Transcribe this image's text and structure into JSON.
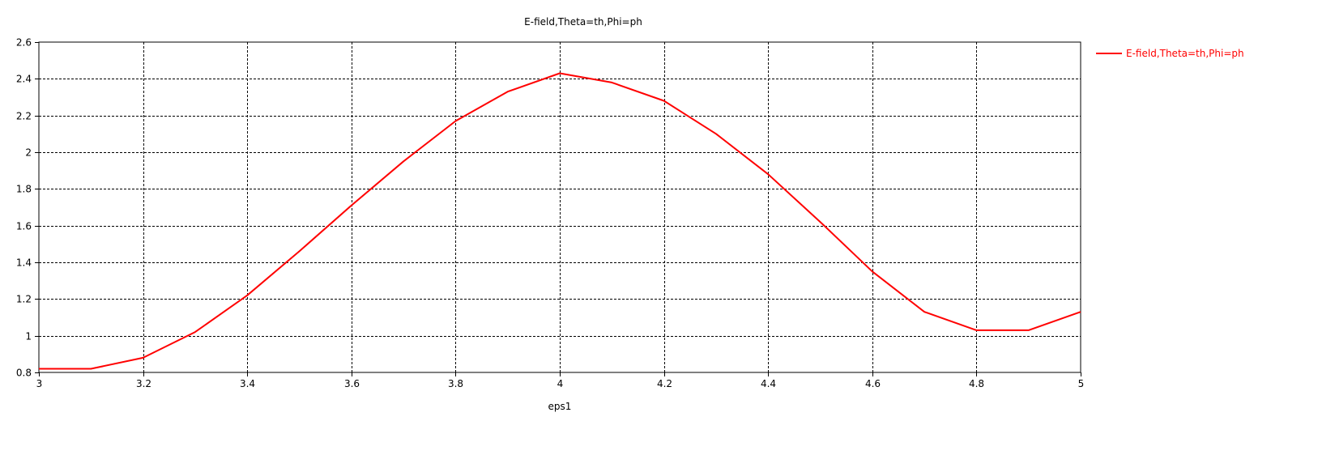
{
  "chart_data": {
    "type": "line",
    "title": "E-field,Theta=th,Phi=ph",
    "xlabel": "eps1",
    "ylabel": "",
    "xlim": [
      3,
      5
    ],
    "ylim": [
      0.8,
      2.6
    ],
    "xticks": [
      "3",
      "3.2",
      "3.4",
      "3.6",
      "3.8",
      "4",
      "4.2",
      "4.4",
      "4.6",
      "4.8",
      "5"
    ],
    "yticks": [
      "0.8",
      "1",
      "1.2",
      "1.4",
      "1.6",
      "1.8",
      "2",
      "2.2",
      "2.4",
      "2.6"
    ],
    "grid": true,
    "legend_position": "top-right",
    "series": [
      {
        "name": "E-field,Theta=th,Phi=ph",
        "color": "#ff0000",
        "x": [
          3.0,
          3.1,
          3.2,
          3.3,
          3.4,
          3.5,
          3.6,
          3.7,
          3.8,
          3.9,
          4.0,
          4.1,
          4.2,
          4.3,
          4.4,
          4.5,
          4.6,
          4.7,
          4.8,
          4.9,
          5.0
        ],
        "y": [
          0.82,
          0.82,
          0.88,
          1.02,
          1.22,
          1.46,
          1.71,
          1.95,
          2.17,
          2.33,
          2.43,
          2.38,
          2.28,
          2.1,
          1.88,
          1.62,
          1.35,
          1.13,
          1.03,
          1.03,
          1.13
        ]
      }
    ]
  }
}
